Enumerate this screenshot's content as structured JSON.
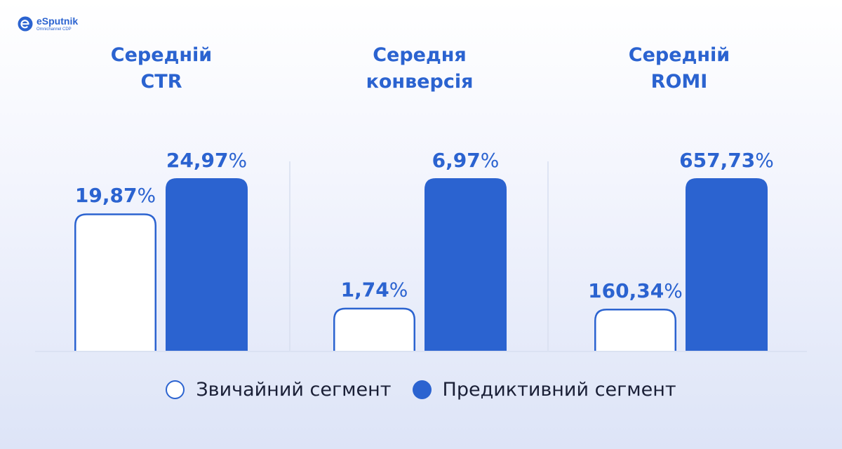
{
  "logo": {
    "name": "eSputnik",
    "tagline": "Omnichannel CDP"
  },
  "chart_data": {
    "type": "bar",
    "groups": [
      {
        "title": [
          "Середній",
          "CTR"
        ],
        "values": [
          19.87,
          24.97
        ],
        "labels": [
          "19,87",
          "24,97"
        ]
      },
      {
        "title": [
          "Середня",
          "конверсія"
        ],
        "values": [
          1.74,
          6.97
        ],
        "labels": [
          "1,74",
          "6,97"
        ]
      },
      {
        "title": [
          "Середній",
          "ROMI"
        ],
        "values": [
          160.34,
          657.73
        ],
        "labels": [
          "160,34",
          "657,73"
        ]
      }
    ],
    "unit": "%",
    "series": [
      {
        "name": "Звичайний сегмент",
        "style": "outline"
      },
      {
        "name": "Предиктивний сегмент",
        "style": "filled"
      }
    ],
    "colors": {
      "accent": "#2b63d0",
      "outline_fill": "#ffffff",
      "divider": "#d8dff0"
    },
    "legend_position": "bottom-center"
  }
}
